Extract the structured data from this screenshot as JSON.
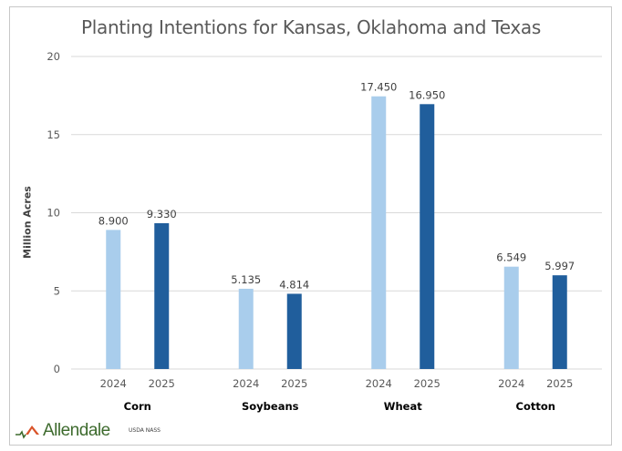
{
  "chart_data": {
    "type": "bar",
    "title": "Planting Intentions for Kansas, Oklahoma and Texas",
    "xlabel": "",
    "ylabel": "Million Acres",
    "ylim": [
      0,
      20
    ],
    "yticks": [
      0,
      5,
      10,
      15,
      20
    ],
    "grid": true,
    "categories": [
      "Corn",
      "Soybeans",
      "Wheat",
      "Cotton"
    ],
    "sub_categories": [
      "2024",
      "2025"
    ],
    "series": [
      {
        "name": "2024",
        "values": [
          8.9,
          5.135,
          17.45,
          6.549
        ],
        "labels": [
          "8.900",
          "5.135",
          "17.450",
          "6.549"
        ],
        "color": "#a9cdec"
      },
      {
        "name": "2025",
        "values": [
          9.33,
          4.814,
          16.95,
          5.997
        ],
        "labels": [
          "9.330",
          "4.814",
          "16.950",
          "5.997"
        ],
        "color": "#205e9c"
      }
    ],
    "legend": "none",
    "source": "USDA NASS"
  },
  "branding": {
    "logo_text": "Allendale",
    "logo_color": "#3e6b2e",
    "logo_accent": "#d9542a"
  },
  "colors": {
    "grid": "#d9d9d9",
    "axis": "#d9d9d9",
    "frame": "#c8c8c8"
  }
}
